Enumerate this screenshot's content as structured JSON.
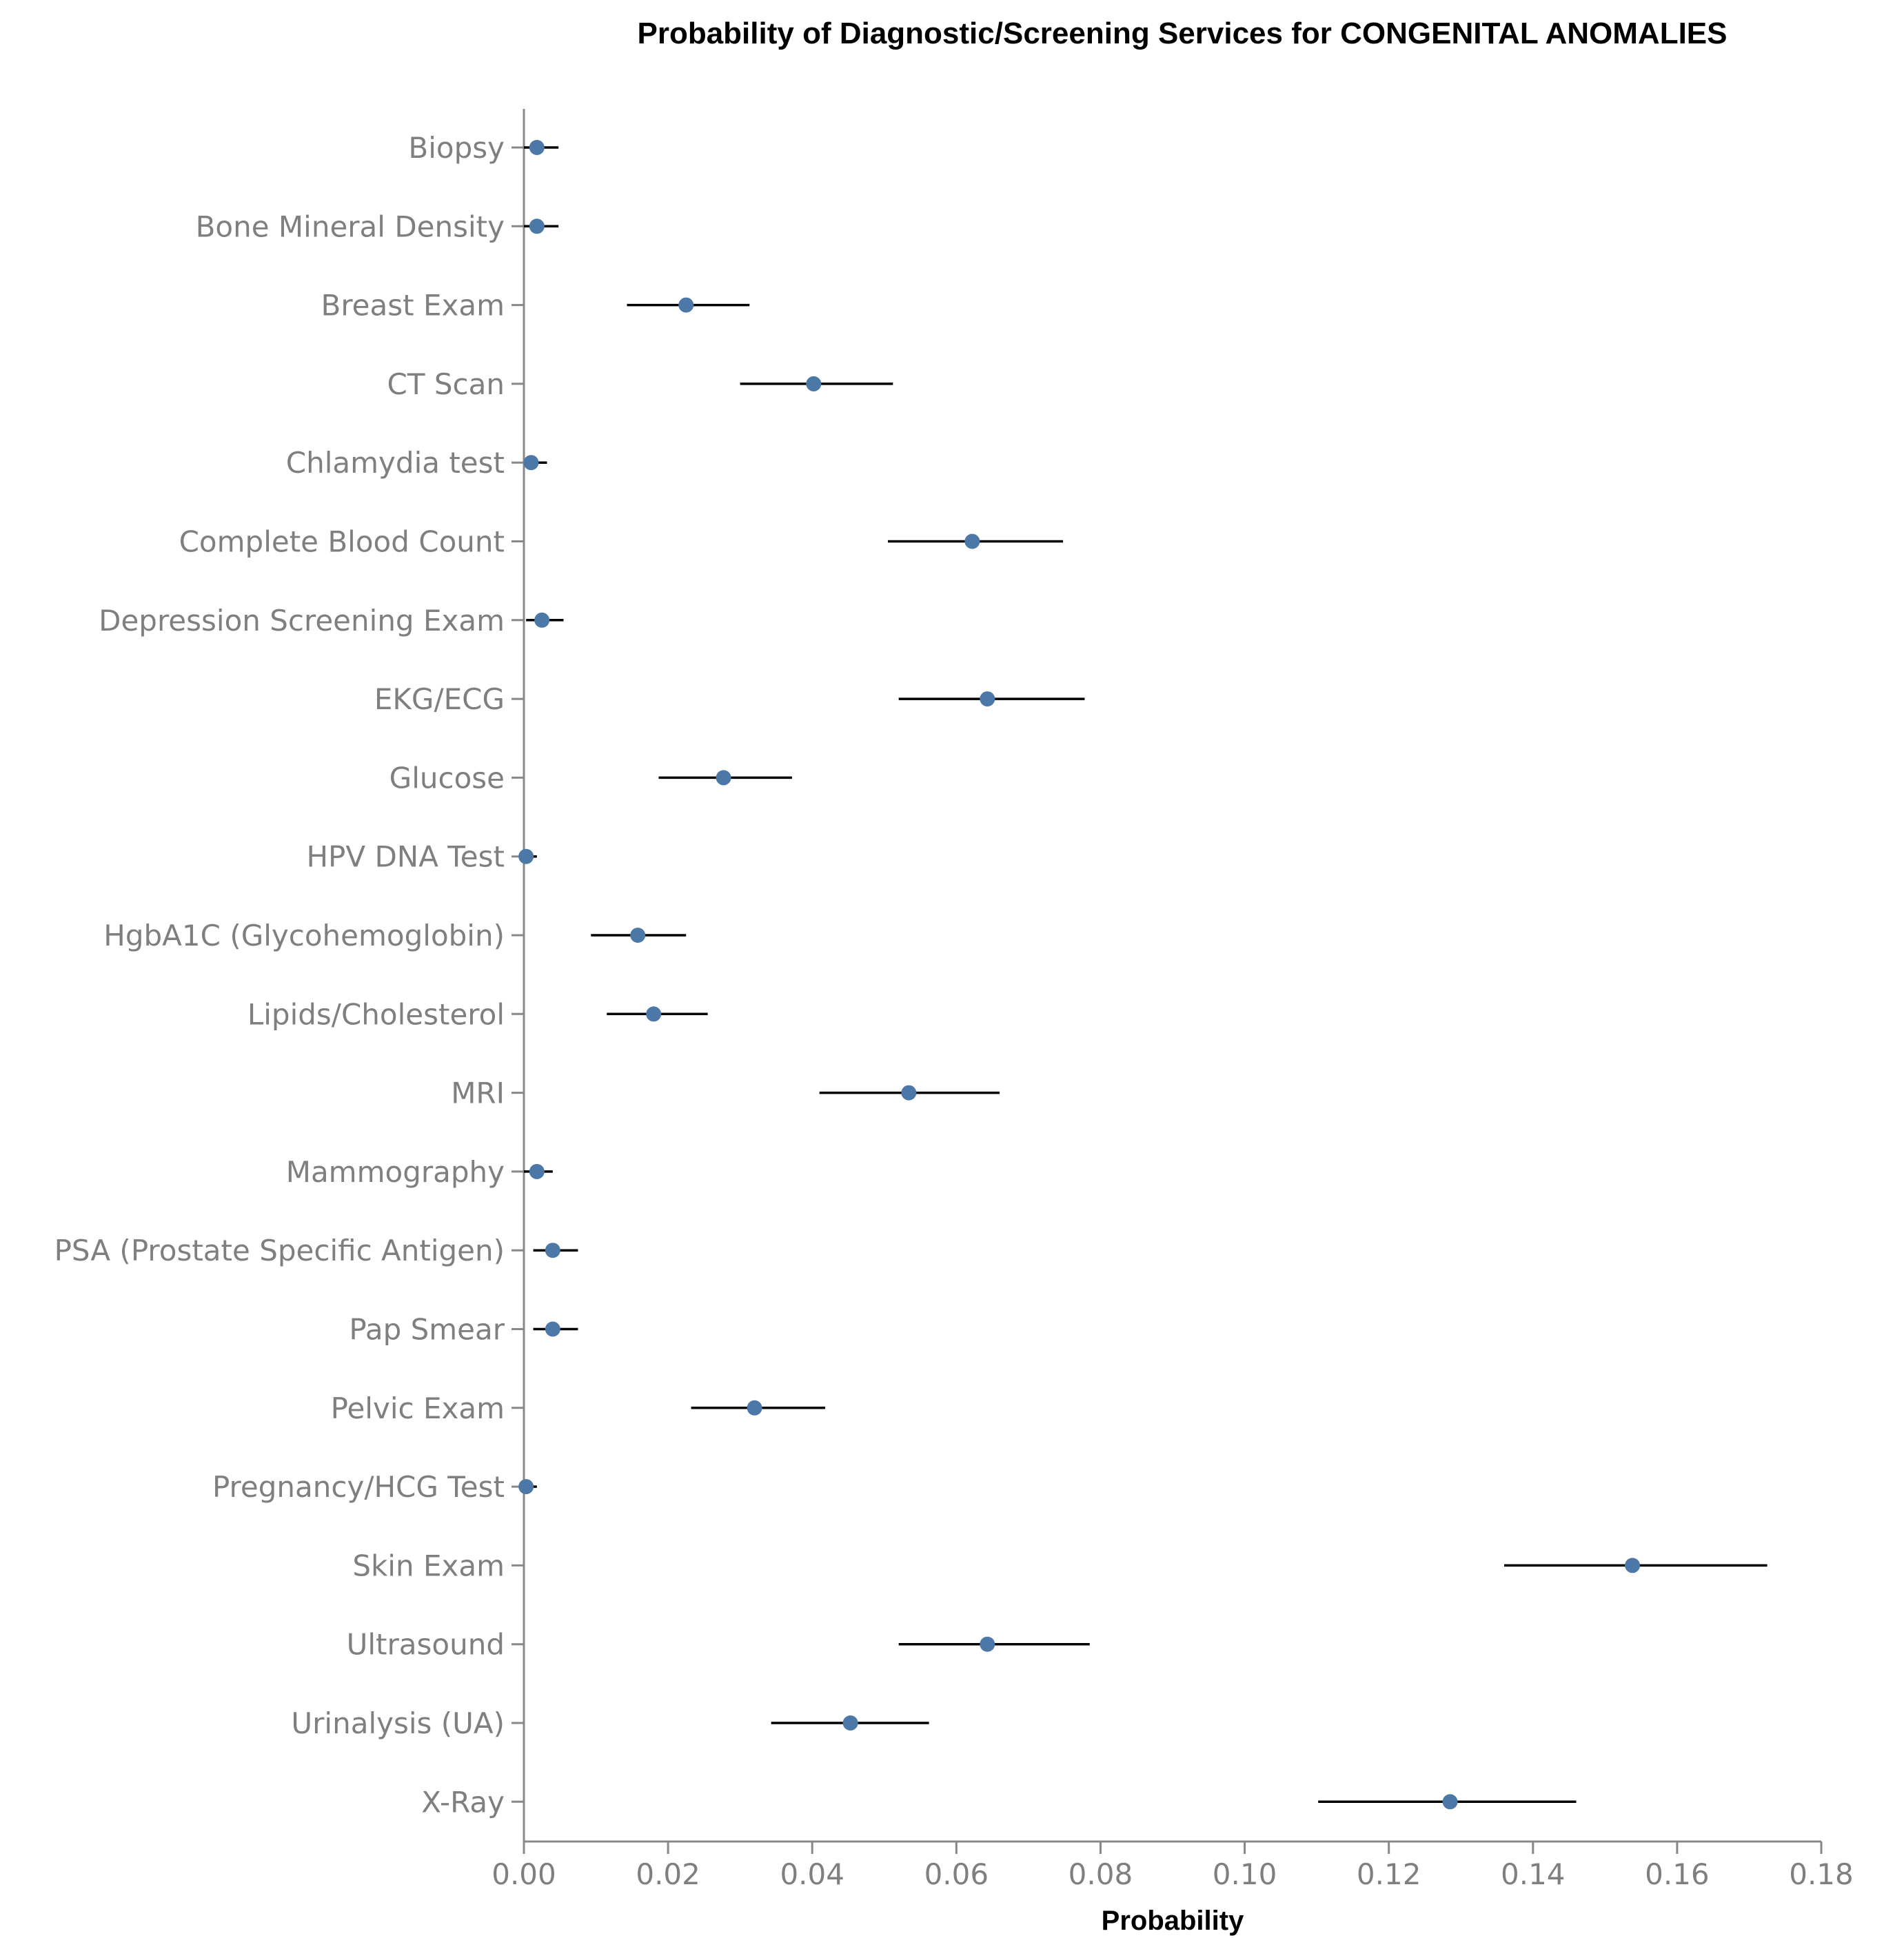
{
  "chart_data": {
    "type": "scatter",
    "title": "Probability of Diagnostic/Screening Services for CONGENITAL ANOMALIES",
    "xlabel": "Probability",
    "ylabel": "",
    "xlim": [
      0,
      0.18
    ],
    "x_ticks": [
      "0.00",
      "0.02",
      "0.04",
      "0.06",
      "0.08",
      "0.10",
      "0.12",
      "0.14",
      "0.16",
      "0.18"
    ],
    "x_tick_values": [
      0,
      0.02,
      0.04,
      0.06,
      0.08,
      0.1,
      0.12,
      0.14,
      0.16,
      0.18
    ],
    "grid": false,
    "point_color": "#4c78a8",
    "error_bar_color": "#000000",
    "categories": [
      "Biopsy",
      "Bone Mineral Density",
      "Breast Exam",
      "CT Scan",
      "Chlamydia test",
      "Complete Blood Count",
      "Depression Screening Exam",
      "EKG/ECG",
      "Glucose",
      "HPV DNA Test",
      "HgbA1C (Glycohemoglobin)",
      "Lipids/Cholesterol",
      "MRI",
      "Mammography",
      "PSA (Prostate Specific Antigen)",
      "Pap Smear",
      "Pelvic Exam",
      "Pregnancy/HCG Test",
      "Skin Exam",
      "Ultrasound",
      "Urinalysis (UA)",
      "X-Ray"
    ],
    "series": [
      {
        "values": [
          0.0018,
          0.0018,
          0.0225,
          0.0402,
          0.001,
          0.0622,
          0.0025,
          0.0643,
          0.0277,
          0.0003,
          0.0158,
          0.018,
          0.0534,
          0.0018,
          0.004,
          0.004,
          0.032,
          0.0003,
          0.1538,
          0.0643,
          0.0453,
          0.1285
        ],
        "lower": [
          0.0,
          0.0,
          0.0143,
          0.03,
          0.0,
          0.0505,
          0.0003,
          0.052,
          0.0187,
          0.0,
          0.0093,
          0.0115,
          0.041,
          0.0,
          0.0013,
          0.0013,
          0.0232,
          0.0,
          0.136,
          0.052,
          0.0343,
          0.1102
        ],
        "upper": [
          0.0048,
          0.0048,
          0.0313,
          0.0512,
          0.0032,
          0.0748,
          0.0055,
          0.0778,
          0.0372,
          0.0018,
          0.0225,
          0.0255,
          0.066,
          0.004,
          0.0075,
          0.0075,
          0.0418,
          0.0018,
          0.1725,
          0.0785,
          0.0562,
          0.146
        ]
      }
    ]
  }
}
